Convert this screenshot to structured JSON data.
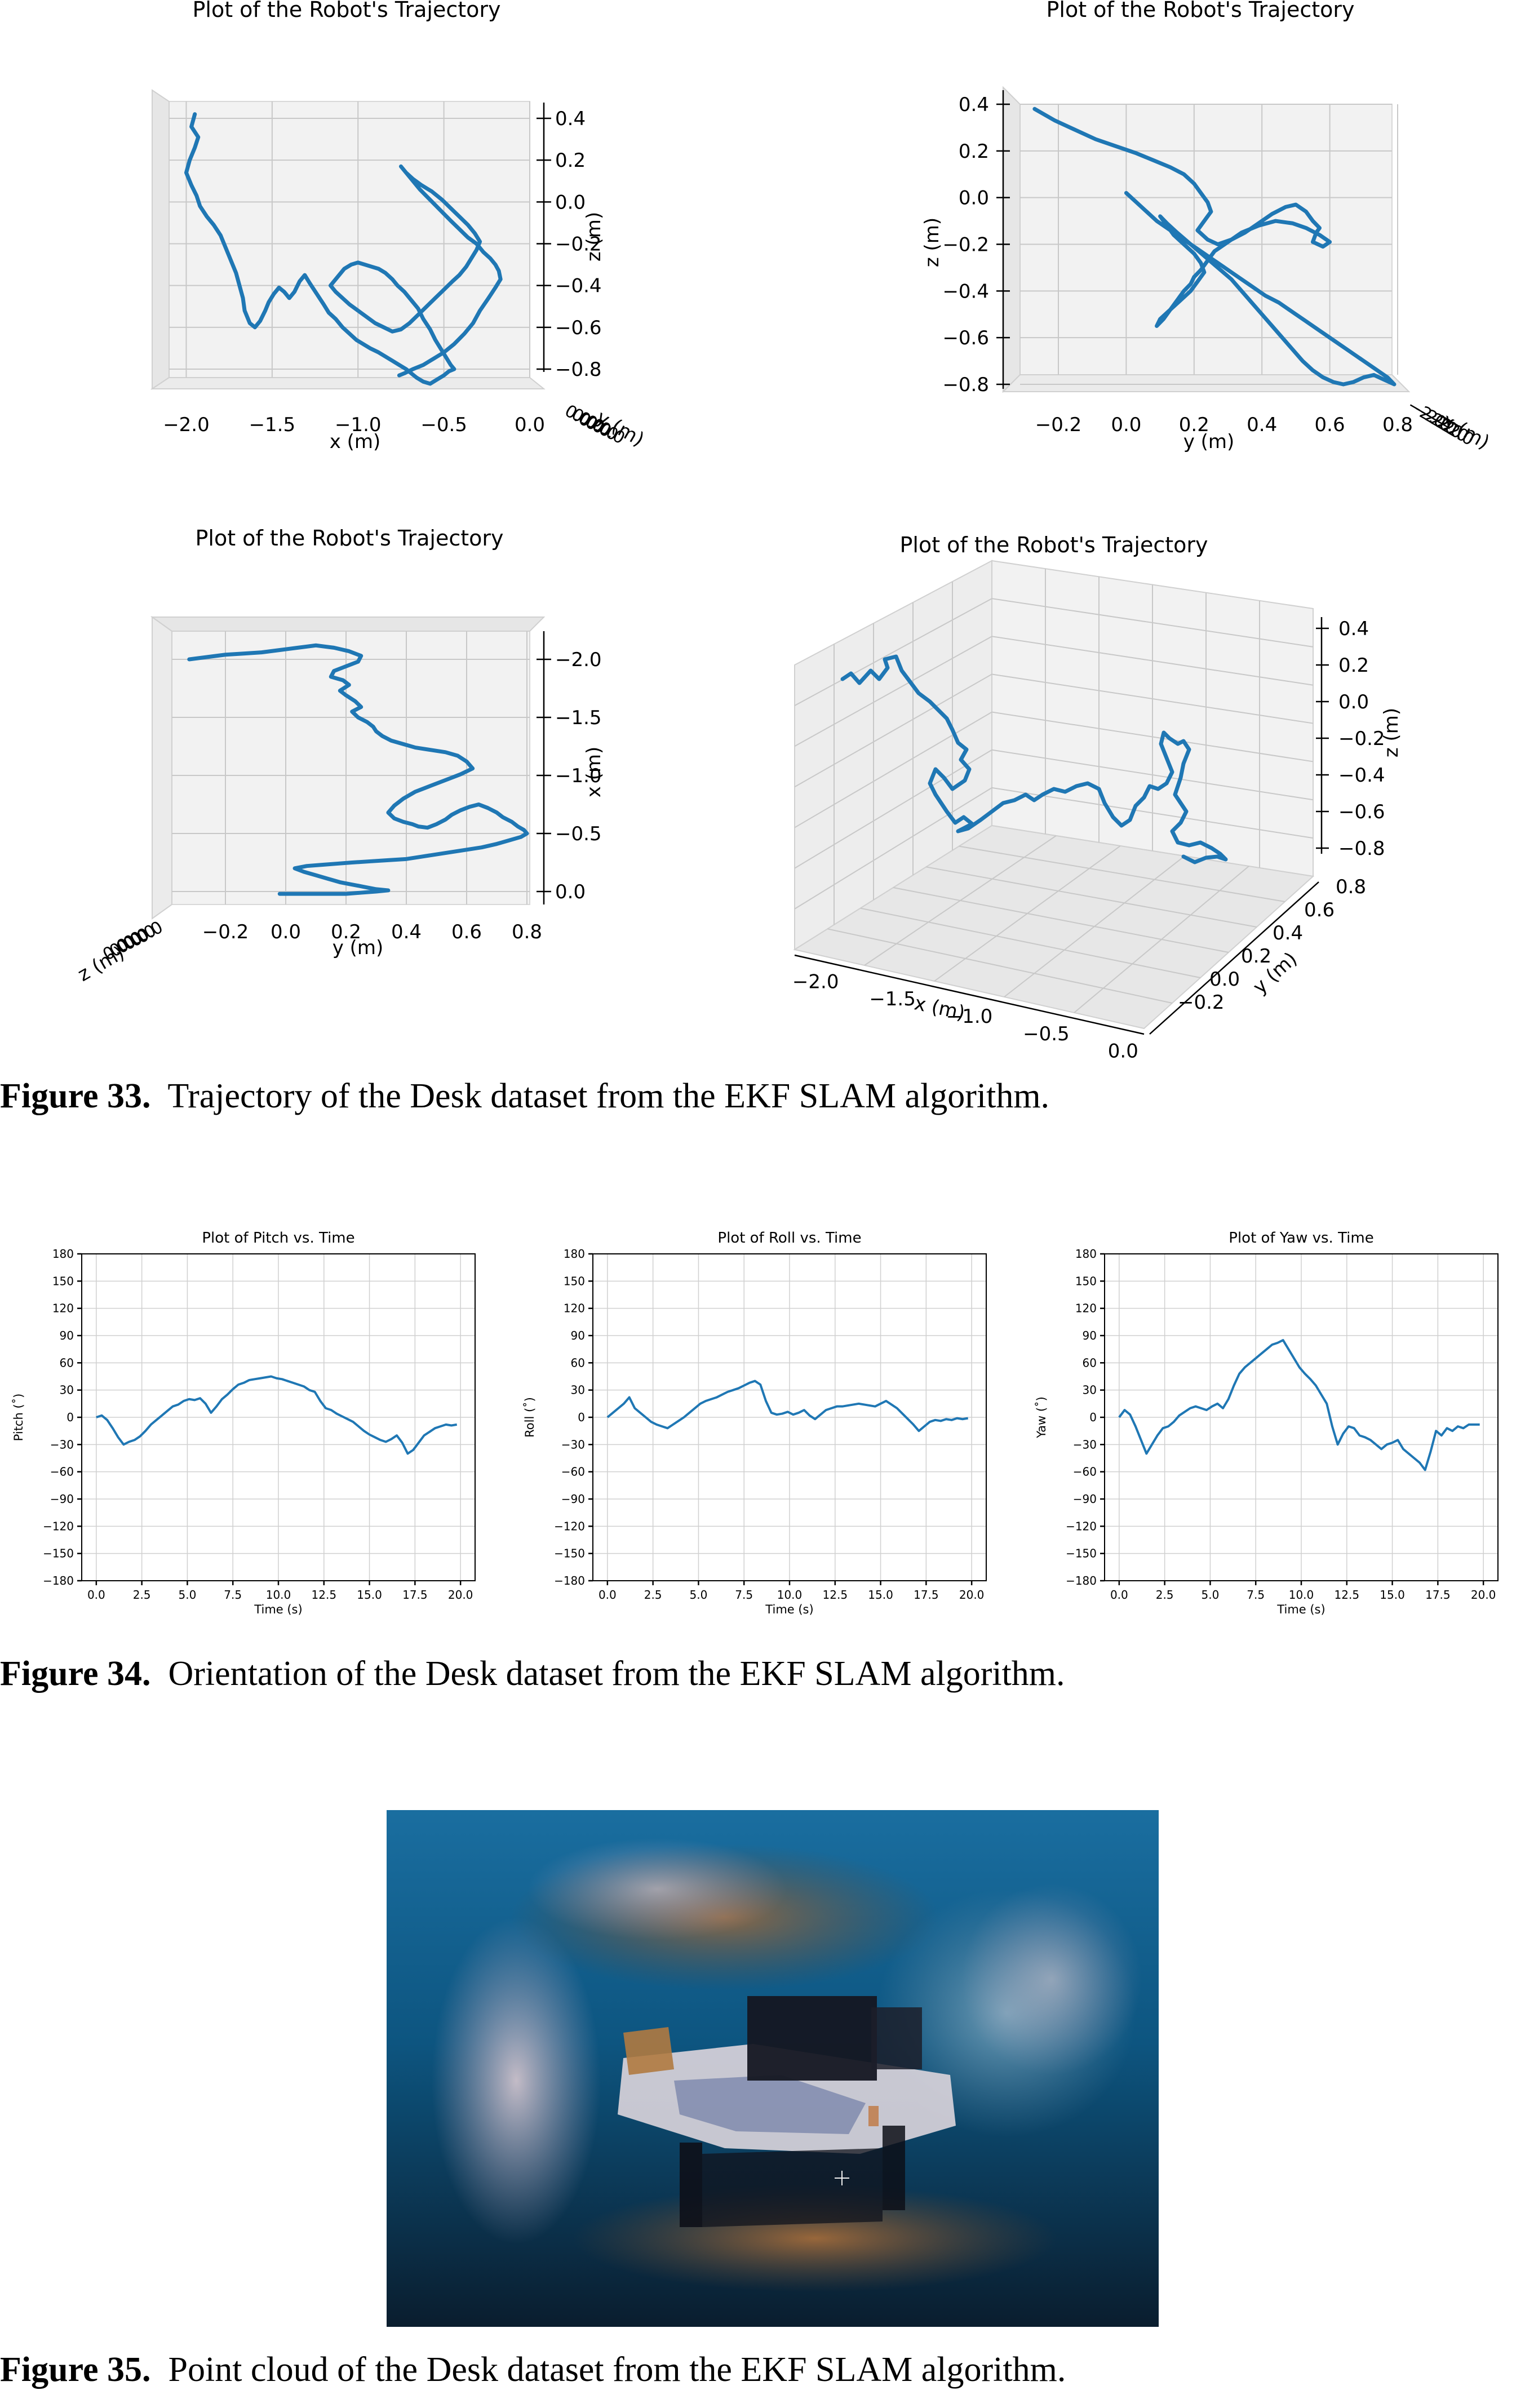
{
  "figures": {
    "fig33": {
      "caption_label": "Figure 33.",
      "caption_text": "Trajectory of the Desk dataset from the EKF SLAM algorithm."
    },
    "fig34": {
      "caption_label": "Figure 34.",
      "caption_text": "Orientation of the Desk dataset from the EKF SLAM algorithm."
    },
    "fig35": {
      "caption_label": "Figure 35.",
      "caption_text": "Point cloud of the Desk dataset from the EKF SLAM algorithm."
    }
  },
  "chart_data": [
    {
      "type": "line",
      "projection": "3d-view-xz",
      "title": "Plot of the Robot's Trajectory",
      "xlabel": "x (m)",
      "ylabel": "z (m)",
      "zlabel": "y (m)",
      "xticks": [
        "−2.0",
        "−1.5",
        "−1.0",
        "−0.5",
        "0.0"
      ],
      "yticks": [
        "0.4",
        "0.2",
        "0.0",
        "−0.2",
        "−0.4",
        "−0.6",
        "−0.8"
      ],
      "xlim": [
        -2.1,
        0.0
      ],
      "ylim": [
        -0.85,
        0.45
      ],
      "grid": true,
      "x": [
        -1.95,
        -1.97,
        -1.93,
        -1.95,
        -1.98,
        -2.0,
        -1.97,
        -1.94,
        -1.92,
        -1.88,
        -1.84,
        -1.8,
        -1.77,
        -1.74,
        -1.71,
        -1.69,
        -1.67,
        -1.66,
        -1.63,
        -1.6,
        -1.57,
        -1.54,
        -1.52,
        -1.49,
        -1.46,
        -1.43,
        -1.4,
        -1.37,
        -1.34,
        -1.31,
        -1.28,
        -1.24,
        -1.2,
        -1.17,
        -1.13,
        -1.09,
        -1.05,
        -1.01,
        -0.97,
        -0.93,
        -0.88,
        -0.84,
        -0.8,
        -0.76,
        -0.72,
        -0.69,
        -0.66,
        -0.62,
        -0.58,
        -0.54,
        -0.5,
        -0.47,
        -0.44,
        -0.46,
        -0.49,
        -0.52,
        -0.55,
        -0.58,
        -0.62,
        -0.65,
        -0.69,
        -0.73,
        -0.77,
        -0.8,
        -0.84,
        -0.88,
        -0.92,
        -0.96,
        -1.0,
        -1.04,
        -1.08,
        -1.11,
        -1.14,
        -1.16,
        -1.13,
        -1.09,
        -1.05,
        -1.0,
        -0.95,
        -0.9,
        -0.85,
        -0.8,
        -0.75,
        -0.7,
        -0.65,
        -0.6,
        -0.55,
        -0.5,
        -0.45,
        -0.41,
        -0.37,
        -0.34,
        -0.31,
        -0.29,
        -0.32,
        -0.36,
        -0.41,
        -0.46,
        -0.51,
        -0.57,
        -0.63,
        -0.68,
        -0.72,
        -0.75,
        -0.7,
        -0.64,
        -0.58,
        -0.52,
        -0.46,
        -0.41,
        -0.36,
        -0.31,
        -0.27,
        -0.23,
        -0.2,
        -0.18,
        -0.17,
        -0.2,
        -0.24,
        -0.29,
        -0.33,
        -0.38,
        -0.44,
        -0.5,
        -0.56,
        -0.62,
        -0.68,
        -0.73,
        -0.76
      ],
      "y": [
        0.42,
        0.36,
        0.31,
        0.26,
        0.2,
        0.14,
        0.08,
        0.03,
        -0.02,
        -0.07,
        -0.11,
        -0.16,
        -0.22,
        -0.28,
        -0.34,
        -0.4,
        -0.46,
        -0.52,
        -0.58,
        -0.6,
        -0.57,
        -0.52,
        -0.48,
        -0.44,
        -0.41,
        -0.43,
        -0.46,
        -0.43,
        -0.38,
        -0.35,
        -0.39,
        -0.44,
        -0.49,
        -0.53,
        -0.56,
        -0.6,
        -0.63,
        -0.66,
        -0.68,
        -0.7,
        -0.72,
        -0.74,
        -0.76,
        -0.78,
        -0.8,
        -0.82,
        -0.84,
        -0.86,
        -0.87,
        -0.85,
        -0.83,
        -0.81,
        -0.8,
        -0.78,
        -0.74,
        -0.7,
        -0.66,
        -0.61,
        -0.56,
        -0.51,
        -0.47,
        -0.43,
        -0.4,
        -0.37,
        -0.34,
        -0.32,
        -0.31,
        -0.3,
        -0.29,
        -0.3,
        -0.32,
        -0.35,
        -0.38,
        -0.4,
        -0.43,
        -0.46,
        -0.49,
        -0.52,
        -0.55,
        -0.58,
        -0.6,
        -0.62,
        -0.61,
        -0.58,
        -0.54,
        -0.5,
        -0.46,
        -0.42,
        -0.38,
        -0.35,
        -0.31,
        -0.27,
        -0.23,
        -0.19,
        -0.15,
        -0.11,
        -0.07,
        -0.03,
        0.01,
        0.05,
        0.08,
        0.11,
        0.14,
        0.17,
        0.12,
        0.06,
        0.01,
        -0.04,
        -0.09,
        -0.13,
        -0.17,
        -0.2,
        -0.24,
        -0.27,
        -0.3,
        -0.33,
        -0.37,
        -0.41,
        -0.46,
        -0.52,
        -0.58,
        -0.63,
        -0.68,
        -0.72,
        -0.75,
        -0.78,
        -0.8,
        -0.82,
        -0.83
      ]
    },
    {
      "type": "line",
      "projection": "3d-view-yz",
      "title": "Plot of the Robot's Trajectory",
      "xlabel": "y (m)",
      "ylabel": "z (m)",
      "zlabel": "x (m)",
      "xticks": [
        "−0.2",
        "0.0",
        "0.2",
        "0.4",
        "0.6",
        "0.8"
      ],
      "yticks": [
        "0.4",
        "0.2",
        "0.0",
        "−0.2",
        "−0.4",
        "−0.6",
        "−0.8"
      ],
      "xlim": [
        -0.35,
        0.8
      ],
      "ylim": [
        -0.85,
        0.45
      ],
      "grid": true,
      "x": [
        -0.27,
        -0.21,
        -0.15,
        -0.09,
        -0.03,
        0.03,
        0.08,
        0.13,
        0.17,
        0.2,
        0.22,
        0.24,
        0.25,
        0.23,
        0.21,
        0.24,
        0.27,
        0.31,
        0.35,
        0.39,
        0.43,
        0.47,
        0.5,
        0.53,
        0.55,
        0.57,
        0.56,
        0.55,
        0.58,
        0.6,
        0.57,
        0.53,
        0.49,
        0.44,
        0.39,
        0.34,
        0.3,
        0.26,
        0.24,
        0.22,
        0.2,
        0.19,
        0.17,
        0.15,
        0.13,
        0.11,
        0.09,
        0.1,
        0.13,
        0.16,
        0.19,
        0.21,
        0.23,
        0.22,
        0.2,
        0.17,
        0.14,
        0.12,
        0.1,
        0.12,
        0.15,
        0.19,
        0.23,
        0.27,
        0.31,
        0.34,
        0.37,
        0.4,
        0.43,
        0.46,
        0.49,
        0.52,
        0.55,
        0.58,
        0.61,
        0.64,
        0.67,
        0.7,
        0.73,
        0.76,
        0.79,
        0.77,
        0.73,
        0.69,
        0.65,
        0.61,
        0.57,
        0.53,
        0.49,
        0.45,
        0.41,
        0.37,
        0.33,
        0.29,
        0.25,
        0.21,
        0.17,
        0.13,
        0.09,
        0.06,
        0.03,
        0.0
      ],
      "y": [
        0.38,
        0.33,
        0.29,
        0.25,
        0.22,
        0.19,
        0.16,
        0.13,
        0.1,
        0.06,
        0.02,
        -0.02,
        -0.06,
        -0.1,
        -0.14,
        -0.18,
        -0.2,
        -0.18,
        -0.15,
        -0.11,
        -0.07,
        -0.04,
        -0.03,
        -0.06,
        -0.1,
        -0.13,
        -0.15,
        -0.19,
        -0.21,
        -0.19,
        -0.16,
        -0.13,
        -0.11,
        -0.1,
        -0.12,
        -0.15,
        -0.19,
        -0.23,
        -0.27,
        -0.31,
        -0.34,
        -0.37,
        -0.4,
        -0.44,
        -0.48,
        -0.52,
        -0.55,
        -0.52,
        -0.48,
        -0.44,
        -0.4,
        -0.36,
        -0.32,
        -0.28,
        -0.24,
        -0.2,
        -0.16,
        -0.12,
        -0.08,
        -0.11,
        -0.15,
        -0.2,
        -0.25,
        -0.3,
        -0.35,
        -0.4,
        -0.45,
        -0.5,
        -0.55,
        -0.6,
        -0.65,
        -0.7,
        -0.74,
        -0.77,
        -0.79,
        -0.8,
        -0.79,
        -0.77,
        -0.76,
        -0.78,
        -0.8,
        -0.77,
        -0.73,
        -0.69,
        -0.65,
        -0.61,
        -0.57,
        -0.53,
        -0.49,
        -0.45,
        -0.42,
        -0.38,
        -0.34,
        -0.3,
        -0.26,
        -0.22,
        -0.18,
        -0.14,
        -0.1,
        -0.06,
        -0.02,
        0.02
      ]
    },
    {
      "type": "line",
      "projection": "3d-view-yx",
      "title": "Plot of the Robot's Trajectory",
      "xlabel": "y (m)",
      "ylabel": "x (m)",
      "zlabel": "z (m)",
      "xticks": [
        "−0.2",
        "0.0",
        "0.2",
        "0.4",
        "0.6",
        "0.8"
      ],
      "yticks": [
        "−2.0",
        "−1.5",
        "−1.0",
        "−0.5",
        "0.0"
      ],
      "xlim": [
        -0.35,
        0.85
      ],
      "ylim": [
        0.05,
        -2.15
      ],
      "grid": true,
      "x": [
        -0.32,
        -0.26,
        -0.2,
        -0.14,
        -0.08,
        -0.02,
        0.04,
        0.1,
        0.16,
        0.21,
        0.25,
        0.24,
        0.2,
        0.16,
        0.15,
        0.19,
        0.21,
        0.18,
        0.2,
        0.23,
        0.25,
        0.22,
        0.24,
        0.27,
        0.29,
        0.3,
        0.32,
        0.35,
        0.39,
        0.43,
        0.48,
        0.53,
        0.57,
        0.6,
        0.62,
        0.58,
        0.53,
        0.48,
        0.43,
        0.39,
        0.36,
        0.34,
        0.36,
        0.39,
        0.42,
        0.44,
        0.47,
        0.5,
        0.53,
        0.55,
        0.58,
        0.61,
        0.64,
        0.67,
        0.7,
        0.72,
        0.75,
        0.77,
        0.79,
        0.8,
        0.78,
        0.74,
        0.7,
        0.65,
        0.6,
        0.55,
        0.5,
        0.45,
        0.4,
        0.34,
        0.28,
        0.22,
        0.17,
        0.12,
        0.07,
        0.03,
        0.06,
        0.1,
        0.14,
        0.18,
        0.22,
        0.26,
        0.3,
        0.34,
        0.3,
        0.25,
        0.2,
        0.15,
        0.1,
        0.06,
        0.02,
        -0.02
      ],
      "y": [
        -2.0,
        -2.02,
        -2.04,
        -2.05,
        -2.06,
        -2.08,
        -2.1,
        -2.12,
        -2.1,
        -2.07,
        -2.03,
        -1.98,
        -1.94,
        -1.9,
        -1.85,
        -1.82,
        -1.78,
        -1.73,
        -1.69,
        -1.64,
        -1.59,
        -1.55,
        -1.5,
        -1.46,
        -1.42,
        -1.38,
        -1.34,
        -1.3,
        -1.27,
        -1.24,
        -1.22,
        -1.2,
        -1.17,
        -1.12,
        -1.06,
        -1.01,
        -0.96,
        -0.91,
        -0.86,
        -0.8,
        -0.74,
        -0.68,
        -0.63,
        -0.6,
        -0.58,
        -0.56,
        -0.55,
        -0.58,
        -0.62,
        -0.66,
        -0.7,
        -0.73,
        -0.75,
        -0.72,
        -0.68,
        -0.64,
        -0.6,
        -0.56,
        -0.53,
        -0.5,
        -0.47,
        -0.44,
        -0.41,
        -0.38,
        -0.36,
        -0.34,
        -0.32,
        -0.3,
        -0.28,
        -0.27,
        -0.26,
        -0.25,
        -0.24,
        -0.23,
        -0.22,
        -0.2,
        -0.17,
        -0.14,
        -0.11,
        -0.08,
        -0.06,
        -0.04,
        -0.02,
        -0.01,
        0.0,
        0.01,
        0.02,
        0.02,
        0.02,
        0.02,
        0.02,
        0.02
      ]
    },
    {
      "type": "line",
      "projection": "3d-perspective",
      "title": "Plot of the Robot's Trajectory",
      "xlabel": "x (m)",
      "ylabel": "y (m)",
      "zlabel": "z (m)",
      "xticks": [
        "−2.0",
        "−1.5",
        "−1.0",
        "−0.5",
        "0.0"
      ],
      "yticks": [
        "−0.2",
        "0.0",
        "0.2",
        "0.4",
        "0.6",
        "0.8"
      ],
      "zticks": [
        "0.4",
        "0.2",
        "0.0",
        "−0.2",
        "−0.4",
        "−0.6",
        "−0.8"
      ],
      "grid": true
    },
    {
      "type": "line",
      "title": "Plot of Pitch vs. Time",
      "xlabel": "Time (s)",
      "ylabel": "Pitch (˚)",
      "xlim": [
        -0.8,
        20.8
      ],
      "ylim": [
        -180,
        180
      ],
      "xticks": [
        "0.0",
        "2.5",
        "5.0",
        "7.5",
        "10.0",
        "12.5",
        "15.0",
        "17.5",
        "20.0"
      ],
      "yticks": [
        "180",
        "150",
        "120",
        "90",
        "60",
        "30",
        "0",
        "−30",
        "−60",
        "−90",
        "−120",
        "−150",
        "−180"
      ],
      "grid": true,
      "x": [
        0.0,
        0.3,
        0.6,
        0.9,
        1.2,
        1.5,
        1.8,
        2.1,
        2.4,
        2.7,
        3.0,
        3.3,
        3.6,
        3.9,
        4.2,
        4.5,
        4.8,
        5.1,
        5.4,
        5.7,
        6.0,
        6.3,
        6.6,
        6.9,
        7.2,
        7.5,
        7.8,
        8.1,
        8.4,
        8.7,
        9.0,
        9.3,
        9.6,
        9.9,
        10.2,
        10.5,
        10.8,
        11.1,
        11.4,
        11.7,
        12.0,
        12.3,
        12.6,
        12.9,
        13.2,
        13.5,
        13.8,
        14.1,
        14.4,
        14.7,
        15.0,
        15.3,
        15.6,
        15.9,
        16.2,
        16.5,
        16.8,
        17.1,
        17.4,
        17.7,
        18.0,
        18.3,
        18.6,
        18.9,
        19.2,
        19.5,
        19.8
      ],
      "values": [
        0,
        2,
        -3,
        -12,
        -22,
        -30,
        -27,
        -25,
        -21,
        -15,
        -8,
        -3,
        2,
        7,
        12,
        14,
        18,
        20,
        19,
        21,
        15,
        5,
        12,
        20,
        25,
        31,
        36,
        38,
        41,
        42,
        43,
        44,
        45,
        43,
        42,
        40,
        38,
        36,
        34,
        30,
        28,
        18,
        10,
        8,
        4,
        1,
        -2,
        -5,
        -10,
        -15,
        -19,
        -22,
        -25,
        -27,
        -24,
        -20,
        -28,
        -40,
        -36,
        -28,
        -20,
        -16,
        -12,
        -10,
        -8,
        -9,
        -8
      ]
    },
    {
      "type": "line",
      "title": "Plot of Roll vs. Time",
      "xlabel": "Time (s)",
      "ylabel": "Roll (˚)",
      "xlim": [
        -0.8,
        20.8
      ],
      "ylim": [
        -180,
        180
      ],
      "xticks": [
        "0.0",
        "2.5",
        "5.0",
        "7.5",
        "10.0",
        "12.5",
        "15.0",
        "17.5",
        "20.0"
      ],
      "yticks": [
        "180",
        "150",
        "120",
        "90",
        "60",
        "30",
        "0",
        "−30",
        "−60",
        "−90",
        "−120",
        "−150",
        "−180"
      ],
      "grid": true,
      "x": [
        0.0,
        0.3,
        0.6,
        0.9,
        1.2,
        1.5,
        1.8,
        2.1,
        2.4,
        2.7,
        3.0,
        3.3,
        3.6,
        3.9,
        4.2,
        4.5,
        4.8,
        5.1,
        5.4,
        5.7,
        6.0,
        6.3,
        6.6,
        6.9,
        7.2,
        7.5,
        7.8,
        8.1,
        8.4,
        8.7,
        9.0,
        9.3,
        9.6,
        9.9,
        10.2,
        10.5,
        10.8,
        11.1,
        11.4,
        11.7,
        12.0,
        12.3,
        12.6,
        12.9,
        13.2,
        13.5,
        13.8,
        14.1,
        14.4,
        14.7,
        15.0,
        15.3,
        15.6,
        15.9,
        16.2,
        16.5,
        16.8,
        17.1,
        17.4,
        17.7,
        18.0,
        18.3,
        18.6,
        18.9,
        19.2,
        19.5,
        19.8
      ],
      "values": [
        0,
        5,
        10,
        15,
        22,
        10,
        5,
        0,
        -5,
        -8,
        -10,
        -12,
        -8,
        -4,
        0,
        5,
        10,
        15,
        18,
        20,
        22,
        25,
        28,
        30,
        32,
        35,
        38,
        40,
        36,
        18,
        5,
        3,
        4,
        6,
        3,
        5,
        8,
        2,
        -2,
        3,
        8,
        10,
        12,
        12,
        13,
        14,
        15,
        14,
        13,
        12,
        15,
        18,
        14,
        10,
        4,
        -2,
        -8,
        -15,
        -10,
        -5,
        -3,
        -4,
        -2,
        -3,
        -1,
        -2,
        -1
      ]
    },
    {
      "type": "line",
      "title": "Plot of Yaw vs. Time",
      "xlabel": "Time (s)",
      "ylabel": "Yaw (˚)",
      "xlim": [
        -0.8,
        20.8
      ],
      "ylim": [
        -180,
        180
      ],
      "xticks": [
        "0.0",
        "2.5",
        "5.0",
        "7.5",
        "10.0",
        "12.5",
        "15.0",
        "17.5",
        "20.0"
      ],
      "yticks": [
        "180",
        "150",
        "120",
        "90",
        "60",
        "30",
        "0",
        "−30",
        "−60",
        "−90",
        "−120",
        "−150",
        "−180"
      ],
      "grid": true,
      "x": [
        0.0,
        0.3,
        0.6,
        0.9,
        1.2,
        1.5,
        1.8,
        2.1,
        2.4,
        2.7,
        3.0,
        3.3,
        3.6,
        3.9,
        4.2,
        4.5,
        4.8,
        5.1,
        5.4,
        5.7,
        6.0,
        6.3,
        6.6,
        6.9,
        7.2,
        7.5,
        7.8,
        8.1,
        8.4,
        8.7,
        9.0,
        9.3,
        9.6,
        9.9,
        10.2,
        10.5,
        10.8,
        11.1,
        11.4,
        11.7,
        12.0,
        12.3,
        12.6,
        12.9,
        13.2,
        13.5,
        13.8,
        14.1,
        14.4,
        14.7,
        15.0,
        15.3,
        15.6,
        15.9,
        16.2,
        16.5,
        16.8,
        17.1,
        17.4,
        17.7,
        18.0,
        18.3,
        18.6,
        18.9,
        19.2,
        19.5,
        19.8
      ],
      "values": [
        0,
        8,
        3,
        -10,
        -25,
        -40,
        -30,
        -20,
        -12,
        -10,
        -5,
        2,
        6,
        10,
        12,
        10,
        8,
        12,
        15,
        10,
        20,
        35,
        48,
        55,
        60,
        65,
        70,
        75,
        80,
        82,
        85,
        75,
        65,
        55,
        48,
        42,
        35,
        25,
        15,
        -10,
        -30,
        -18,
        -10,
        -12,
        -20,
        -22,
        -25,
        -30,
        -35,
        -30,
        -28,
        -25,
        -35,
        -40,
        -45,
        -50,
        -58,
        -38,
        -15,
        -20,
        -12,
        -15,
        -10,
        -12,
        -8,
        -8,
        -8
      ]
    }
  ]
}
